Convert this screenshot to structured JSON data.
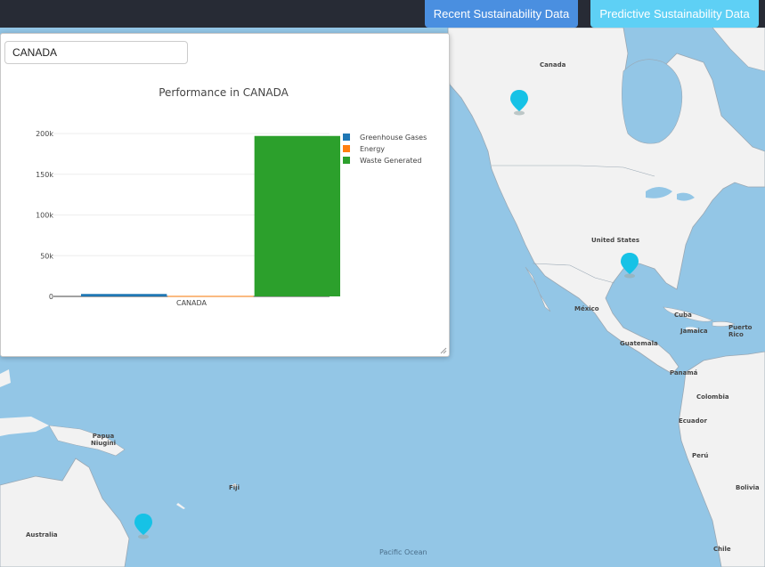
{
  "header": {
    "recent_label": "Recent Sustainability Data",
    "predict_label": "Predictive Sustainability Data"
  },
  "colors": {
    "topbar": "#272b35",
    "recent_btn": "#4a8fe0",
    "predict_btn": "#5ed0f5",
    "ocean": "#93c6e6",
    "land": "#f2f2f2",
    "marker": "#16c2e6"
  },
  "panel": {
    "input_value": "CANADA"
  },
  "map": {
    "labels": {
      "canada": "Canada",
      "united_states": "United States",
      "mexico": "México",
      "cuba": "Cuba",
      "jamaica": "Jamaica",
      "puerto_rico": "Puerto Rico",
      "guatemala": "Guatemala",
      "panama": "Panamá",
      "colombia": "Colombia",
      "ecuador": "Ecuador",
      "peru": "Perú",
      "bolivia": "Bolivia",
      "chile": "Chile",
      "papua": "Papua Niugini",
      "fiji": "Fiji",
      "australia": "Australia",
      "pacific": "Pacific Ocean"
    },
    "marker_icon": "map-pin-icon"
  },
  "chart_data": {
    "type": "bar",
    "title": "Performance in CANADA",
    "categories": [
      "CANADA"
    ],
    "series": [
      {
        "name": "Greenhouse Gases",
        "values": [
          3000
        ],
        "color": "#1f77b4"
      },
      {
        "name": "Energy",
        "values": [
          600
        ],
        "color": "#ff7f0e"
      },
      {
        "name": "Waste Generated",
        "values": [
          197000
        ],
        "color": "#2ca02c"
      }
    ],
    "ylim": [
      0,
      200000
    ],
    "yticks": [
      0,
      50000,
      100000,
      150000,
      200000
    ],
    "ytick_labels": [
      "0",
      "50k",
      "100k",
      "150k",
      "200k"
    ],
    "grid": true,
    "legend": "right"
  }
}
